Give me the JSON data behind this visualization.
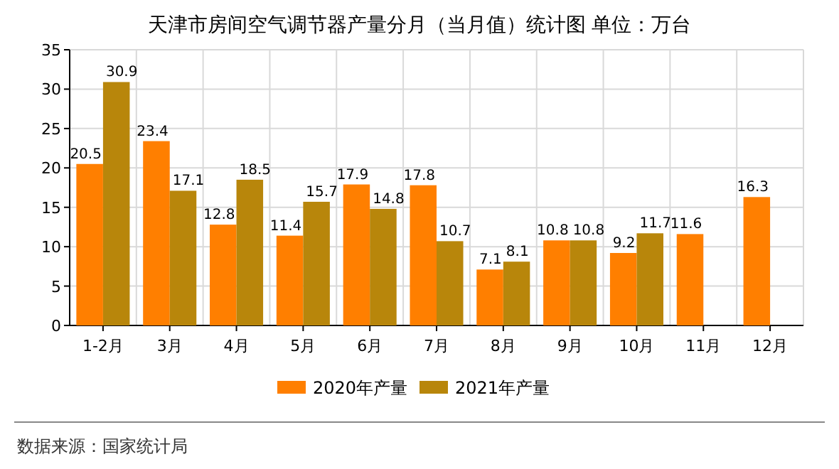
{
  "chart_data": {
    "type": "bar",
    "title": "天津市房间空气调节器产量分月（当月值）统计图 单位：万台",
    "categories": [
      "1-2月",
      "3月",
      "4月",
      "5月",
      "6月",
      "7月",
      "8月",
      "9月",
      "10月",
      "11月",
      "12月"
    ],
    "series": [
      {
        "name": "2020年产量",
        "color": "#ff7f00",
        "values": [
          20.5,
          23.4,
          12.8,
          11.4,
          17.9,
          17.8,
          7.1,
          10.8,
          9.2,
          11.6,
          16.3
        ]
      },
      {
        "name": "2021年产量",
        "color": "#b8860b",
        "values": [
          30.9,
          17.1,
          18.5,
          15.7,
          14.8,
          10.7,
          8.1,
          10.8,
          11.7,
          null,
          null
        ]
      }
    ],
    "ylim": [
      0,
      35
    ],
    "yticks": [
      0,
      5,
      10,
      15,
      20,
      25,
      30,
      35
    ],
    "grid": true,
    "legend": "bottom",
    "data_labels": true,
    "annotations": [
      "数据来源：国家统计局"
    ]
  }
}
